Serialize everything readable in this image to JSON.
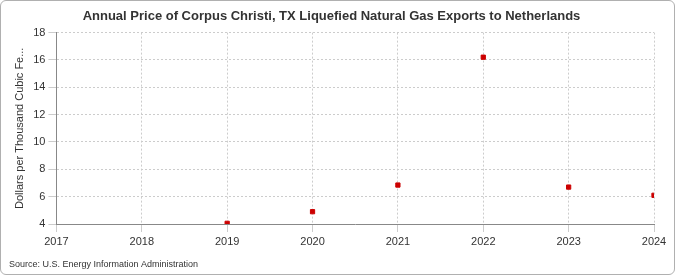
{
  "chart_data": {
    "type": "scatter",
    "title": "Annual Price of Corpus Christi, TX Liquefied Natural Gas Exports to Netherlands",
    "y_label": "Dollars per Thousand Cubic Fe...",
    "source": "Source: U.S. Energy Information Administration",
    "x": [
      2019,
      2020,
      2021,
      2022,
      2023,
      2024
    ],
    "values": [
      4.05,
      4.9,
      6.85,
      16.2,
      6.7,
      6.1
    ],
    "color": "#cc0000",
    "marker": "square",
    "xlim": [
      2017,
      2024
    ],
    "xticks": [
      2017,
      2018,
      2019,
      2020,
      2021,
      2022,
      2023,
      2024
    ],
    "ylim": [
      4,
      18
    ],
    "yticks": [
      4,
      6,
      8,
      10,
      12,
      14,
      16,
      18
    ],
    "grid": true
  }
}
